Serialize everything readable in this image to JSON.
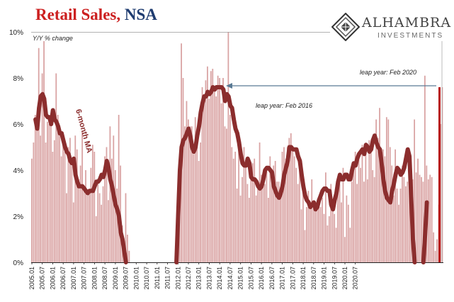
{
  "title": {
    "part1": "Retail Sales",
    "comma": ",",
    "part2": "NSA"
  },
  "logo": {
    "name": "ALHAMBRA",
    "sub": "INVESTMENTS",
    "icon": "diamond-pattern-logo"
  },
  "colors": {
    "title_red": "#cc2020",
    "title_blue": "#1f3c70",
    "bars": "#d9a3a3",
    "ma_line": "#8b2d2d",
    "arrow": "#5a7a94",
    "latest_bar": "#b81414"
  },
  "chart_data": {
    "type": "bar",
    "ylabel": "Y/Y % change",
    "ylim": [
      0,
      10
    ],
    "yticks": [
      "0%",
      "2%",
      "4%",
      "6%",
      "8%",
      "10%"
    ],
    "xticks": [
      "2005.01",
      "2005.07",
      "2006.01",
      "2006.07",
      "2007.01",
      "2007.07",
      "2008.01",
      "2008.07",
      "2009.01",
      "2009.07",
      "2010.01",
      "2010.07",
      "2011.01",
      "2011.07",
      "2012.01",
      "2012.07",
      "2013.01",
      "2013.07",
      "2014.01",
      "2014.07",
      "2015.01",
      "2015.07",
      "2016.01",
      "2016.07",
      "2017.01",
      "2017.07",
      "2018.01",
      "2018.07",
      "2019.01",
      "2019.07",
      "2020.01",
      "2020.07"
    ],
    "x_start": "2005.01",
    "monthly_values": [
      4.5,
      5.2,
      6.4,
      5.9,
      9.3,
      5.5,
      8.2,
      9.6,
      5.2,
      6.1,
      6.0,
      6.1,
      4.8,
      5.3,
      8.2,
      6.4,
      5.8,
      4.6,
      5.3,
      4.8,
      3.0,
      5.0,
      5.4,
      4.2,
      2.6,
      5.5,
      4.9,
      3.6,
      4.2,
      5.7,
      3.3,
      4.0,
      2.9,
      3.1,
      4.1,
      5.1,
      4.8,
      2.0,
      3.6,
      3.0,
      2.5,
      3.3,
      4.6,
      5.0,
      2.7,
      5.9,
      4.5,
      5.5,
      4.0,
      3.2,
      6.4,
      4.2,
      1.6,
      0.5,
      3.0,
      1.2,
      0.5,
      0,
      0,
      0,
      0,
      0,
      0,
      0,
      0,
      0,
      0,
      0,
      0,
      0,
      0,
      0,
      0,
      0,
      0,
      0,
      0,
      0,
      0,
      0,
      0,
      0,
      0,
      0,
      1.2,
      4.2,
      9.5,
      8.0,
      5.9,
      7.0,
      6.2,
      5.9,
      5.9,
      4.7,
      6.3,
      5.4,
      4.4,
      5.2,
      7.6,
      7.3,
      7.9,
      8.5,
      7.1,
      8.3,
      8.4,
      7.6,
      7.2,
      8.1,
      8.0,
      6.9,
      8.0,
      5.9,
      5.8,
      10.0,
      6.4,
      5.0,
      4.5,
      4.8,
      3.2,
      4.9,
      2.9,
      3.7,
      5.0,
      4.4,
      3.4,
      2.8,
      3.8,
      4.3,
      4.5,
      2.9,
      3.2,
      5.2,
      3.8,
      3.6,
      3.4,
      4.1,
      2.8,
      4.6,
      4.0,
      4.2,
      4.4,
      3.5,
      3.5,
      2.9,
      4.8,
      5.0,
      4.5,
      5.0,
      5.4,
      5.6,
      4.9,
      4.6,
      4.1,
      3.4,
      4.4,
      2.3,
      3.3,
      1.4,
      2.4,
      3.1,
      2.5,
      3.6,
      2.5,
      2.4,
      2.3,
      2.5,
      2.4,
      2.8,
      2.1,
      3.9,
      1.6,
      2.0,
      3.4,
      2.4,
      2.1,
      1.5,
      3.2,
      3.4,
      2.6,
      4.1,
      1.1,
      2.9,
      2.5,
      1.5,
      3.5,
      4.2,
      4.8,
      3.4,
      4.5,
      4.1,
      5.1,
      3.5,
      4.8,
      3.6,
      5.3,
      4.8,
      4.0,
      3.7,
      6.2,
      5.4,
      6.7,
      4.9,
      4.9,
      4.6,
      6.3,
      6.2,
      5.0,
      4.2,
      2.9,
      4.9,
      3.2,
      2.5,
      3.2,
      4.2,
      3.7,
      3.3,
      3.5,
      4.6,
      4.1,
      3.6,
      6.2,
      3.9,
      4.5,
      3.8,
      3.7,
      3.5,
      8.1,
      4.2,
      3.6,
      3.8,
      3.7,
      1.3,
      0.5,
      1.0,
      2.5,
      6.0,
      7.6
    ],
    "ma_points": [
      [
        0,
        5.8
      ],
      [
        2,
        6.2
      ],
      [
        3,
        5.8
      ],
      [
        4,
        6.7
      ],
      [
        5,
        7.2
      ],
      [
        6,
        7.3
      ],
      [
        7,
        7.1
      ],
      [
        8,
        6.4
      ],
      [
        9,
        6.3
      ],
      [
        10,
        6.3
      ],
      [
        11,
        6.0
      ],
      [
        12,
        6.6
      ],
      [
        13,
        6.2
      ],
      [
        14,
        6.1
      ],
      [
        15,
        5.9
      ],
      [
        16,
        5.6
      ],
      [
        17,
        5.6
      ],
      [
        18,
        5.3
      ],
      [
        19,
        5.0
      ],
      [
        20,
        4.8
      ],
      [
        21,
        4.7
      ],
      [
        22,
        4.4
      ],
      [
        23,
        4.3
      ],
      [
        24,
        4.5
      ],
      [
        25,
        3.8
      ],
      [
        26,
        3.5
      ],
      [
        27,
        3.3
      ],
      [
        28,
        3.3
      ],
      [
        29,
        3.3
      ],
      [
        30,
        3.2
      ],
      [
        31,
        3.1
      ],
      [
        32,
        3.0
      ],
      [
        33,
        3.1
      ],
      [
        34,
        3.1
      ],
      [
        35,
        3.1
      ],
      [
        36,
        3.3
      ],
      [
        37,
        3.5
      ],
      [
        38,
        3.5
      ],
      [
        39,
        3.6
      ],
      [
        40,
        3.8
      ],
      [
        41,
        3.7
      ],
      [
        42,
        4.0
      ],
      [
        43,
        4.4
      ],
      [
        44,
        4.1
      ],
      [
        45,
        3.6
      ],
      [
        46,
        3.3
      ],
      [
        47,
        2.9
      ],
      [
        48,
        2.5
      ],
      [
        49,
        2.3
      ],
      [
        50,
        2.0
      ],
      [
        51,
        1.3
      ],
      [
        52,
        1.0
      ],
      [
        53,
        0.5
      ],
      [
        54,
        0
      ],
      [
        83,
        0
      ],
      [
        84,
        2.0
      ],
      [
        85,
        4.0
      ],
      [
        86,
        5.0
      ],
      [
        87,
        5.3
      ],
      [
        88,
        5.4
      ],
      [
        89,
        5.6
      ],
      [
        90,
        5.8
      ],
      [
        91,
        5.5
      ],
      [
        92,
        5.0
      ],
      [
        93,
        4.8
      ],
      [
        94,
        5.0
      ],
      [
        95,
        5.5
      ],
      [
        96,
        5.9
      ],
      [
        97,
        6.5
      ],
      [
        98,
        6.9
      ],
      [
        99,
        7.2
      ],
      [
        100,
        7.2
      ],
      [
        101,
        7.4
      ],
      [
        102,
        7.3
      ],
      [
        103,
        7.4
      ],
      [
        104,
        7.6
      ],
      [
        105,
        7.5
      ],
      [
        106,
        7.6
      ],
      [
        107,
        7.6
      ],
      [
        108,
        7.6
      ],
      [
        109,
        7.6
      ],
      [
        110,
        7.5
      ],
      [
        111,
        7.0
      ],
      [
        112,
        7.3
      ],
      [
        113,
        7.2
      ],
      [
        114,
        6.8
      ],
      [
        115,
        6.7
      ],
      [
        116,
        6.2
      ],
      [
        117,
        5.8
      ],
      [
        118,
        5.6
      ],
      [
        119,
        5.2
      ],
      [
        120,
        4.7
      ],
      [
        121,
        4.3
      ],
      [
        122,
        4.2
      ],
      [
        123,
        4.2
      ],
      [
        124,
        4.5
      ],
      [
        125,
        4.3
      ],
      [
        126,
        3.7
      ],
      [
        127,
        3.6
      ],
      [
        128,
        3.6
      ],
      [
        129,
        3.5
      ],
      [
        130,
        3.3
      ],
      [
        131,
        3.2
      ],
      [
        132,
        3.3
      ],
      [
        133,
        3.6
      ],
      [
        134,
        4.0
      ],
      [
        135,
        4.1
      ],
      [
        136,
        4.1
      ],
      [
        137,
        4.0
      ],
      [
        138,
        3.9
      ],
      [
        139,
        3.3
      ],
      [
        140,
        3.1
      ],
      [
        141,
        2.9
      ],
      [
        142,
        2.8
      ],
      [
        143,
        3.0
      ],
      [
        144,
        3.3
      ],
      [
        145,
        3.8
      ],
      [
        146,
        4.1
      ],
      [
        147,
        4.4
      ],
      [
        148,
        5.0
      ],
      [
        149,
        5.0
      ],
      [
        150,
        4.9
      ],
      [
        151,
        4.9
      ],
      [
        152,
        4.9
      ],
      [
        153,
        4.6
      ],
      [
        154,
        4.4
      ],
      [
        155,
        3.8
      ],
      [
        156,
        3.3
      ],
      [
        157,
        2.9
      ],
      [
        158,
        2.7
      ],
      [
        159,
        2.6
      ],
      [
        160,
        2.4
      ],
      [
        161,
        2.5
      ],
      [
        162,
        2.6
      ],
      [
        163,
        2.3
      ],
      [
        164,
        2.4
      ],
      [
        165,
        2.7
      ],
      [
        166,
        2.9
      ],
      [
        167,
        3.1
      ],
      [
        168,
        3.2
      ],
      [
        169,
        3.2
      ],
      [
        170,
        3.1
      ],
      [
        171,
        3.1
      ],
      [
        172,
        2.5
      ],
      [
        173,
        2.3
      ],
      [
        174,
        2.7
      ],
      [
        175,
        3.0
      ],
      [
        176,
        3.5
      ],
      [
        177,
        3.8
      ],
      [
        178,
        3.6
      ],
      [
        179,
        3.6
      ],
      [
        180,
        3.8
      ],
      [
        181,
        3.8
      ],
      [
        182,
        3.6
      ],
      [
        183,
        3.6
      ],
      [
        184,
        4.0
      ],
      [
        185,
        4.3
      ],
      [
        186,
        4.2
      ],
      [
        187,
        4.5
      ],
      [
        188,
        4.7
      ],
      [
        189,
        4.8
      ],
      [
        190,
        4.9
      ],
      [
        191,
        4.7
      ],
      [
        192,
        5.1
      ],
      [
        193,
        5.0
      ],
      [
        194,
        4.8
      ],
      [
        195,
        4.9
      ],
      [
        196,
        5.3
      ],
      [
        197,
        5.5
      ],
      [
        198,
        5.2
      ],
      [
        199,
        5.0
      ],
      [
        200,
        4.9
      ],
      [
        201,
        4.3
      ],
      [
        202,
        3.6
      ],
      [
        203,
        3.1
      ],
      [
        204,
        2.8
      ],
      [
        205,
        2.7
      ],
      [
        206,
        2.6
      ],
      [
        207,
        3.1
      ],
      [
        208,
        3.4
      ],
      [
        209,
        3.8
      ],
      [
        210,
        4.1
      ],
      [
        211,
        4.0
      ],
      [
        212,
        3.8
      ],
      [
        213,
        3.9
      ],
      [
        214,
        4.1
      ],
      [
        215,
        4.5
      ],
      [
        216,
        4.9
      ],
      [
        217,
        4.6
      ],
      [
        218,
        2.8
      ],
      [
        219,
        1.0
      ],
      [
        220,
        0
      ],
      [
        225,
        0
      ],
      [
        226,
        1.2
      ],
      [
        227,
        2.6
      ]
    ],
    "latest_bar": {
      "value": 7.6
    },
    "annotations": {
      "ma_label": "6-month MA",
      "leap_2016": "leap year: Feb 2016",
      "leap_2020": "leap year: Feb 2020"
    }
  }
}
